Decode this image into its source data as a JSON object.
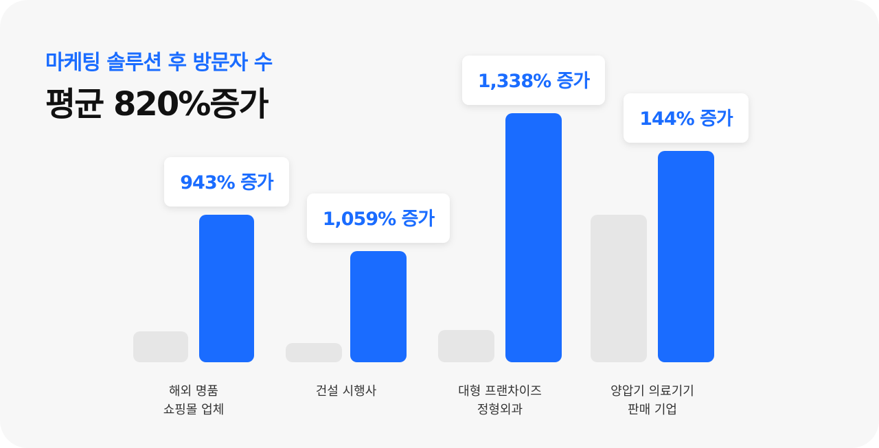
{
  "header": {
    "subtitle": "마케팅 솔루션 후 방문자 수",
    "title": "평균 820%증가"
  },
  "colors": {
    "before": "#e6e6e6",
    "after": "#1a6cff",
    "label_text": "#1a6cff",
    "background": "#f7f7f7"
  },
  "chart_data": {
    "type": "bar",
    "title": "평균 820%증가",
    "xlabel": "",
    "ylabel": "",
    "grid": false,
    "categories": [
      [
        "해외 명품",
        "쇼핑몰 업체"
      ],
      [
        "건설 시행사"
      ],
      [
        "대형 프랜차이즈",
        "정형외과"
      ],
      [
        "양압기 의료기기",
        "판매 기업"
      ]
    ],
    "series": [
      {
        "values": [
          45,
          28,
          47,
          215
        ]
      },
      {
        "values": [
          215,
          162,
          363,
          308
        ]
      }
    ],
    "annotations": [
      "943% 증가",
      "1,059% 증가",
      "1,338% 증가",
      "144% 증가"
    ],
    "ylim": [
      0,
      363
    ]
  }
}
